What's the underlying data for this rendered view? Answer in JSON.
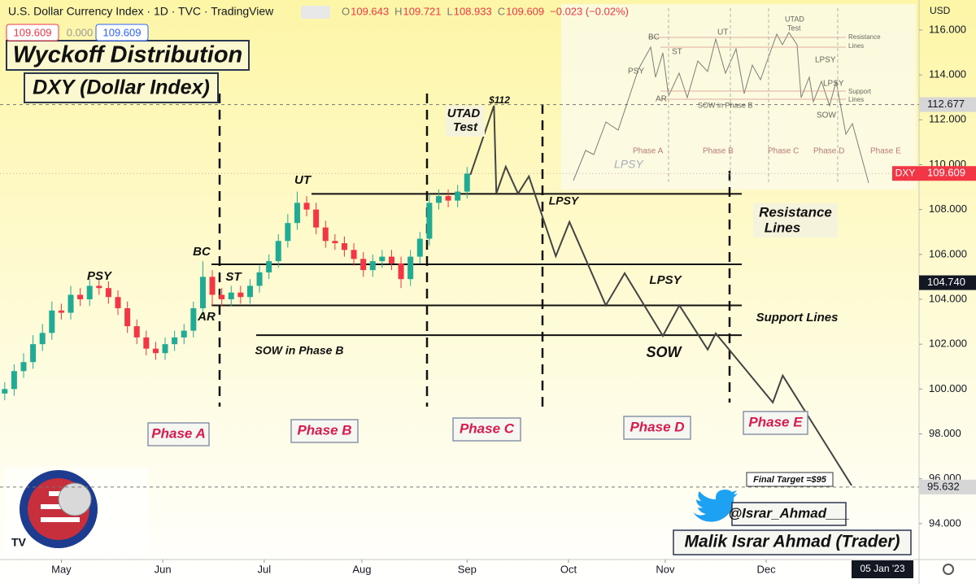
{
  "chart_data": {
    "type": "candlestick",
    "header": "U.S. Dollar Currency Index · 1D · TVC · TradingView",
    "ohlc": [
      {
        "label": "O",
        "value": 109.643
      },
      {
        "label": "H",
        "value": 109.721
      },
      {
        "label": "L",
        "value": 108.933
      },
      {
        "label": "C",
        "value": 109.609
      }
    ],
    "change": "−0.023 (−0.02%)",
    "quote_boxes": [
      "109.609",
      "0.000",
      "109.609"
    ],
    "title": "Wyckoff Distribution",
    "subtitle": "DXY (Dollar Index)",
    "up_color": "#22ab94",
    "down_color": "#f23645",
    "x": [
      1,
      3,
      5,
      7,
      9,
      11,
      13,
      15,
      17,
      19,
      21,
      23,
      25,
      27,
      29,
      31,
      33,
      35,
      37,
      39,
      41,
      43,
      45,
      47,
      49,
      51,
      53,
      55,
      57,
      59,
      61,
      63,
      65,
      67,
      69,
      71,
      73,
      75,
      77,
      79,
      81,
      83,
      85,
      87,
      89,
      91,
      93,
      95,
      97,
      99
    ],
    "open": [
      99.8,
      100.0,
      100.8,
      101.2,
      102.0,
      102.5,
      103.5,
      103.4,
      104.2,
      104.0,
      104.6,
      104.5,
      104.1,
      103.6,
      102.8,
      102.3,
      101.8,
      101.6,
      102.0,
      102.3,
      102.6,
      103.6,
      105.0,
      104.2,
      104.0,
      104.3,
      104.1,
      104.6,
      105.2,
      105.7,
      106.6,
      107.4,
      108.3,
      108.0,
      107.2,
      106.6,
      106.5,
      106.2,
      105.8,
      105.3,
      105.7,
      105.9,
      105.6,
      104.9,
      105.9,
      106.7,
      108.3,
      108.6,
      108.4,
      108.8
    ],
    "high": [
      100.3,
      101.1,
      101.6,
      102.4,
      102.9,
      103.9,
      103.8,
      104.6,
      104.5,
      104.9,
      104.9,
      104.8,
      104.4,
      103.9,
      103.1,
      102.6,
      102.1,
      102.3,
      102.6,
      102.9,
      103.9,
      105.7,
      105.3,
      104.5,
      104.6,
      104.6,
      104.9,
      105.5,
      106.0,
      106.9,
      107.8,
      108.8,
      108.6,
      108.3,
      107.5,
      106.9,
      106.8,
      106.5,
      106.1,
      106.0,
      106.2,
      106.2,
      105.9,
      106.2,
      107.0,
      108.7,
      108.9,
      108.9,
      109.1,
      109.9
    ],
    "low": [
      99.5,
      99.7,
      100.5,
      100.9,
      101.7,
      102.2,
      103.1,
      103.1,
      103.7,
      103.7,
      104.2,
      103.8,
      103.3,
      102.5,
      102.0,
      101.5,
      101.3,
      101.3,
      101.7,
      102.0,
      102.3,
      103.3,
      103.7,
      103.7,
      103.7,
      103.8,
      103.8,
      104.3,
      104.9,
      105.4,
      106.3,
      107.1,
      107.7,
      106.9,
      106.3,
      106.2,
      105.9,
      105.5,
      105.0,
      105.0,
      105.4,
      105.3,
      104.5,
      104.6,
      105.6,
      106.4,
      108.0,
      108.1,
      108.1,
      108.5
    ],
    "close": [
      100.0,
      100.8,
      101.2,
      102.0,
      102.5,
      103.5,
      103.4,
      104.2,
      104.0,
      104.6,
      104.5,
      104.1,
      103.6,
      102.8,
      102.3,
      101.8,
      101.6,
      102.0,
      102.3,
      102.6,
      103.6,
      105.0,
      104.2,
      104.0,
      104.3,
      104.1,
      104.6,
      105.2,
      105.7,
      106.6,
      107.4,
      108.3,
      108.0,
      107.2,
      106.6,
      106.5,
      106.2,
      105.8,
      105.3,
      105.7,
      105.9,
      105.6,
      104.9,
      105.9,
      106.7,
      108.3,
      108.6,
      108.4,
      108.8,
      109.6
    ],
    "projection": {
      "color": "#444444",
      "x": [
        99.7,
        104.7,
        105.2,
        107.2,
        109.8,
        112.1,
        117.8,
        120.7,
        128.4,
        132.4,
        140.5,
        144.0,
        150.0,
        151.7,
        163.8,
        165.9,
        180.5
      ],
      "values": [
        109.55,
        112.63,
        108.71,
        109.91,
        108.71,
        109.48,
        105.92,
        107.45,
        103.73,
        105.16,
        102.37,
        103.73,
        101.76,
        102.48,
        99.4,
        100.6,
        95.7
      ]
    },
    "levels": [
      108.7,
      105.56,
      103.73,
      102.4
    ],
    "xlim": [
      0,
      194.8
    ],
    "xticks": [
      {
        "value": 13,
        "label": "May"
      },
      {
        "value": 34.5,
        "label": "Jun"
      },
      {
        "value": 56,
        "label": "Jul"
      },
      {
        "value": 76.7,
        "label": "Aug"
      },
      {
        "value": 99,
        "label": "Sep"
      },
      {
        "value": 120.5,
        "label": "Oct"
      },
      {
        "value": 141,
        "label": "Nov"
      },
      {
        "value": 162.4,
        "label": "Dec"
      }
    ],
    "ylim": [
      92.4,
      117.34
    ],
    "y_unit": "USD",
    "yticks": [
      {
        "value": 116,
        "label": "116.000"
      },
      {
        "value": 114,
        "label": "114.000"
      },
      {
        "value": 112,
        "label": "112.000"
      },
      {
        "value": 110,
        "label": "110.000"
      },
      {
        "value": 108,
        "label": "108.000"
      },
      {
        "value": 106,
        "label": "106.000"
      },
      {
        "value": 104,
        "label": "104.000"
      },
      {
        "value": 102,
        "label": "102.000"
      },
      {
        "value": 100,
        "label": "100.000"
      },
      {
        "value": 98,
        "label": "98.000"
      },
      {
        "value": 96,
        "label": "96.000"
      },
      {
        "value": 94,
        "label": "94.000"
      }
    ],
    "price_tags": [
      {
        "value": 112.677,
        "label": "112.677",
        "color": "#d6d6d6",
        "text_color": "#131722"
      },
      {
        "value": 109.609,
        "label": "109.609",
        "name": "DXY",
        "color": "#f23645",
        "text_color": "#ffffff"
      },
      {
        "value": 104.74,
        "label": "104.740",
        "color": "#131722",
        "text_color": "#ffffff"
      },
      {
        "value": 95.632,
        "label": "95.632",
        "color": "#d6d6d6",
        "text_color": "#131722"
      }
    ],
    "annotations": [
      "PSY",
      "BC",
      "ST",
      "AR",
      "UT",
      "UTAD",
      "Test",
      "$112",
      "LPSY",
      "Resistance",
      "Lines",
      "LPSY",
      "Support Lines",
      "SOW in Phase B",
      "SOW"
    ],
    "phases": [
      "Phase A",
      "Phase B",
      "Phase C",
      "Phase D",
      "Phase E"
    ],
    "final_target": "Final Target =$95",
    "handle": "@Israr_Ahmad___",
    "author": "Malik Israr Ahmad (Trader)",
    "date_tag": "05 Jan '23",
    "inset": {
      "labels": [
        "BC",
        "UT",
        "UTAD",
        "Test",
        "PSY",
        "ST",
        "AR",
        "SOW in Phase B",
        "LPSY",
        "LPSY",
        "SOW",
        "Resistance",
        "Lines",
        "Support",
        "Lines",
        "Phase A",
        "Phase B",
        "Phase C",
        "Phase D",
        "Phase E",
        "LPSY"
      ]
    }
  }
}
